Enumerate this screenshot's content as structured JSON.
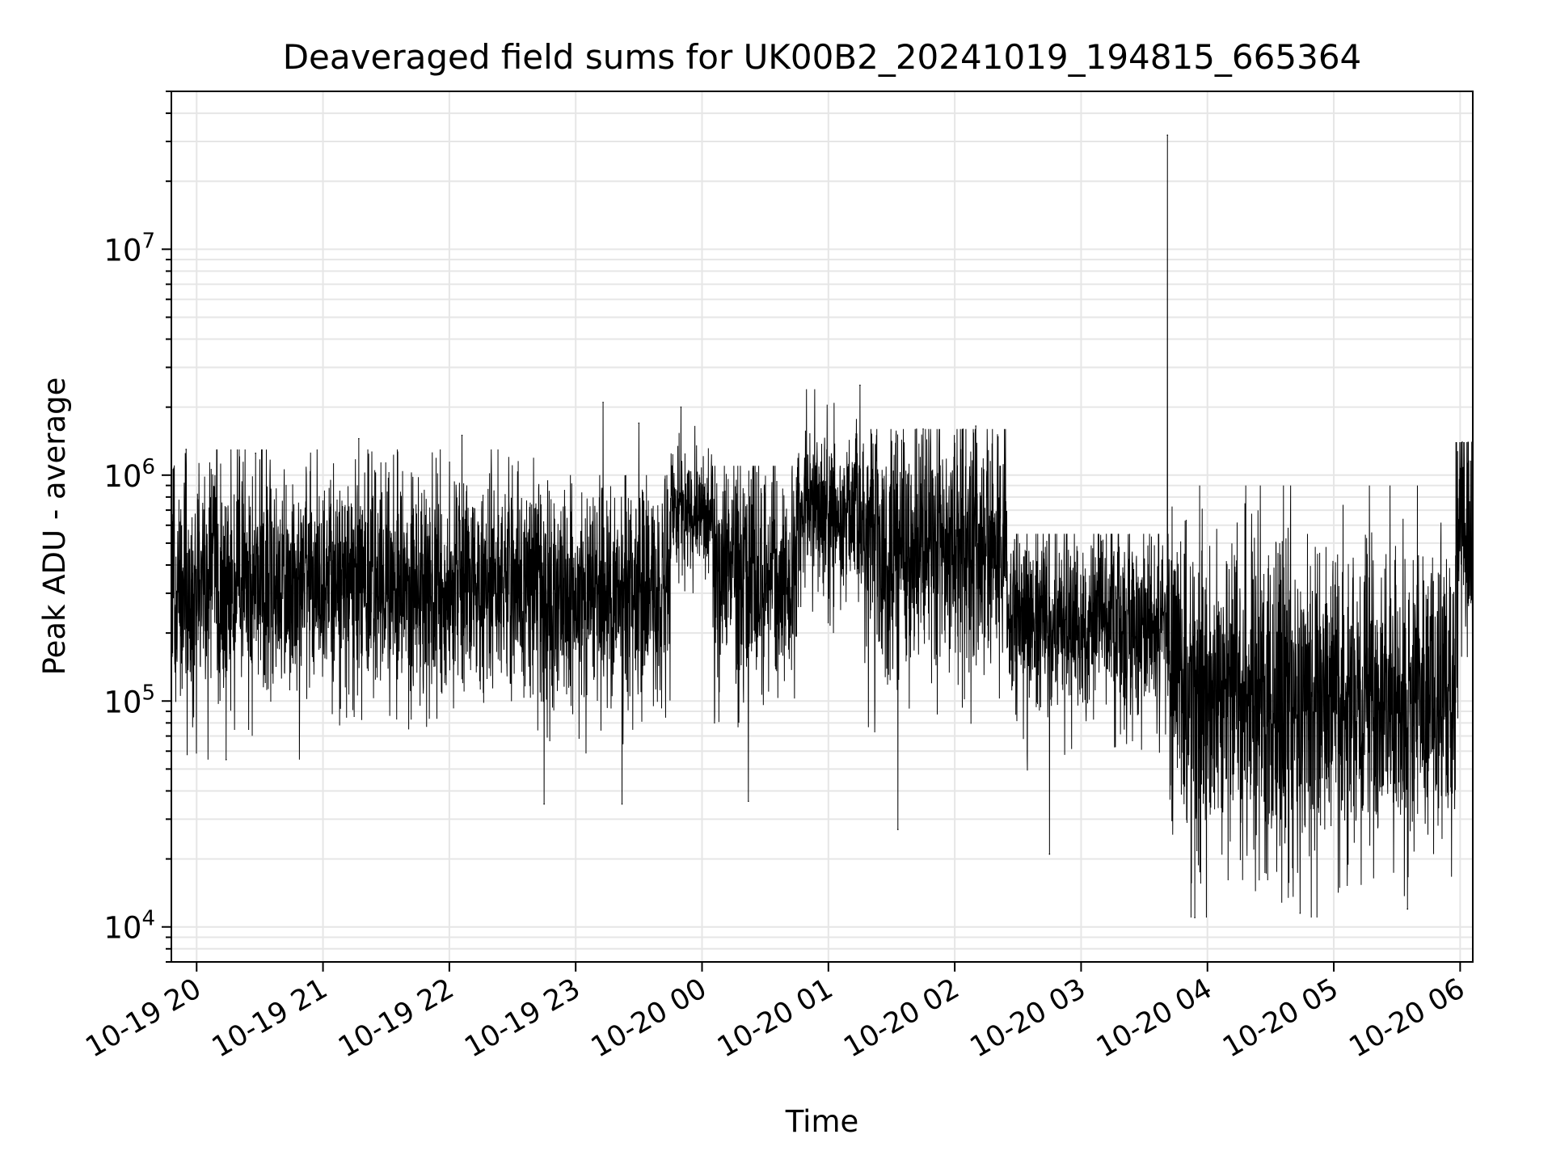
{
  "chart_data": {
    "type": "line",
    "title": "Deaveraged field sums for UK00B2_20241019_194815_665364",
    "xlabel": "Time",
    "ylabel": "Peak ADU - average",
    "x_axis": {
      "scale": "time",
      "range": [
        "2024-10-19 19:48",
        "2024-10-20 06:06"
      ],
      "ticks": [
        "2024-10-19 20:00",
        "2024-10-19 21:00",
        "2024-10-19 22:00",
        "2024-10-19 23:00",
        "2024-10-20 00:00",
        "2024-10-20 01:00",
        "2024-10-20 02:00",
        "2024-10-20 03:00",
        "2024-10-20 04:00",
        "2024-10-20 05:00",
        "2024-10-20 06:00"
      ],
      "tick_labels": [
        "10-19 20",
        "10-19 21",
        "10-19 22",
        "10-19 23",
        "10-20 00",
        "10-20 01",
        "10-20 02",
        "10-20 03",
        "10-20 04",
        "10-20 05",
        "10-20 06"
      ]
    },
    "y_axis": {
      "scale": "log",
      "range": [
        7000,
        50000000
      ],
      "ticks": [
        10000,
        100000,
        1000000,
        10000000
      ],
      "tick_labels": [
        {
          "base": "10",
          "exp": "4"
        },
        {
          "base": "10",
          "exp": "5"
        },
        {
          "base": "10",
          "exp": "6"
        },
        {
          "base": "10",
          "exp": "7"
        }
      ]
    },
    "grid": true,
    "line_color": "#000000",
    "grid_color": "#e6e6e6",
    "series": [
      {
        "noise_segments": [
          {
            "from": "2024-10-19 19:48",
            "to": "2024-10-19 22:45",
            "median": 320000,
            "low": 55000,
            "high": 1300000
          },
          {
            "from": "2024-10-19 22:45",
            "to": "2024-10-19 23:45",
            "median": 300000,
            "low": 40000,
            "high": 1000000
          },
          {
            "from": "2024-10-19 23:45",
            "to": "2024-10-20 00:05",
            "median": 700000,
            "low": 300000,
            "high": 1800000
          },
          {
            "from": "2024-10-20 00:05",
            "to": "2024-10-20 00:45",
            "median": 380000,
            "low": 40000,
            "high": 1100000
          },
          {
            "from": "2024-10-20 00:45",
            "to": "2024-10-20 01:17",
            "median": 700000,
            "low": 200000,
            "high": 2400000
          },
          {
            "from": "2024-10-20 01:17",
            "to": "2024-10-20 02:25",
            "median": 480000,
            "low": 30000,
            "high": 1600000
          },
          {
            "from": "2024-10-20 02:25",
            "to": "2024-10-20 03:42",
            "median": 220000,
            "low": 35000,
            "high": 550000
          },
          {
            "from": "2024-10-20 03:42",
            "to": "2024-10-20 05:58",
            "median": 100000,
            "low": 11000,
            "high": 900000
          },
          {
            "from": "2024-10-20 05:58",
            "to": "2024-10-20 06:06",
            "median": 500000,
            "low": 30000,
            "high": 1400000
          }
        ],
        "spikes": [
          {
            "time": "2024-10-19 19:55",
            "value": 1300000
          },
          {
            "time": "2024-10-19 20:14",
            "value": 55000
          },
          {
            "time": "2024-10-19 20:28",
            "value": 1250000
          },
          {
            "time": "2024-10-19 21:17",
            "value": 1450000
          },
          {
            "time": "2024-10-19 22:06",
            "value": 1500000
          },
          {
            "time": "2024-10-19 22:45",
            "value": 35000
          },
          {
            "time": "2024-10-19 23:13",
            "value": 2100000
          },
          {
            "time": "2024-10-19 23:22",
            "value": 35000
          },
          {
            "time": "2024-10-19 23:30",
            "value": 1700000
          },
          {
            "time": "2024-10-19 23:50",
            "value": 2000000
          },
          {
            "time": "2024-10-20 00:22",
            "value": 36000
          },
          {
            "time": "2024-10-20 01:15",
            "value": 2500000
          },
          {
            "time": "2024-10-20 01:33",
            "value": 27000
          },
          {
            "time": "2024-10-20 01:45",
            "value": 1600000
          },
          {
            "time": "2024-10-20 02:10",
            "value": 1650000
          },
          {
            "time": "2024-10-20 02:45",
            "value": 21000
          },
          {
            "time": "2024-10-20 03:41",
            "value": 32000000
          },
          {
            "time": "2024-10-20 03:54",
            "value": 11000
          },
          {
            "time": "2024-10-20 04:44",
            "value": 11500
          },
          {
            "time": "2024-10-20 05:35",
            "value": 12000
          },
          {
            "time": "2024-10-20 06:01",
            "value": 1400000
          }
        ]
      }
    ]
  }
}
